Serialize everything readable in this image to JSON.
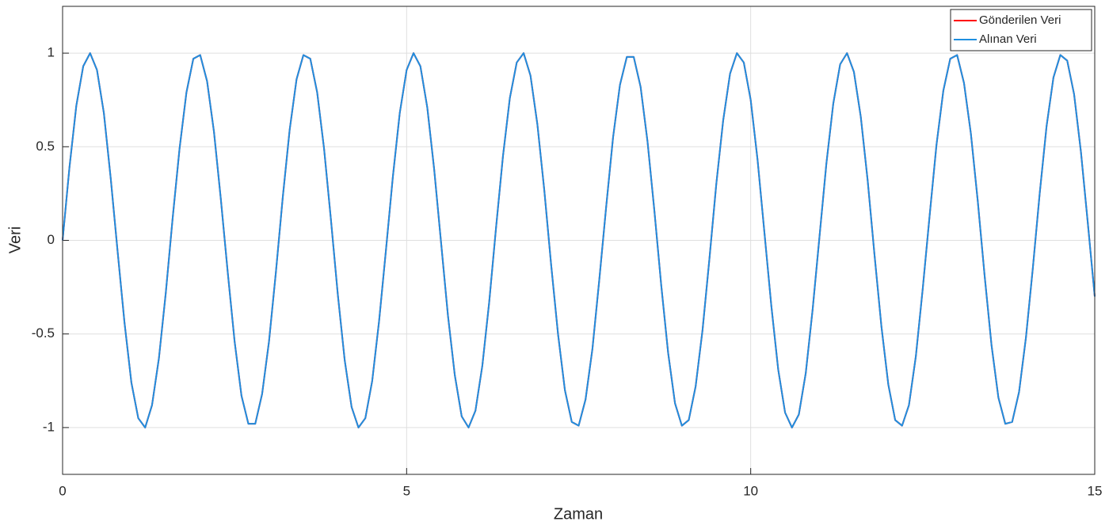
{
  "chart_data": {
    "type": "line",
    "xlabel": "Zaman",
    "ylabel": "Veri",
    "x": [
      0,
      0.1,
      0.2,
      0.3,
      0.4,
      0.5,
      0.6,
      0.7,
      0.8,
      0.9,
      1,
      1.1,
      1.2,
      1.3,
      1.4,
      1.5,
      1.6,
      1.7,
      1.8,
      1.9,
      2,
      2.1,
      2.2,
      2.3,
      2.4,
      2.5,
      2.6,
      2.7,
      2.8,
      2.9,
      3,
      3.1,
      3.2,
      3.3,
      3.4,
      3.5,
      3.6,
      3.7,
      3.8,
      3.9,
      4,
      4.1,
      4.2,
      4.3,
      4.4,
      4.5,
      4.6,
      4.7,
      4.8,
      4.9,
      5,
      5.1,
      5.2,
      5.3,
      5.4,
      5.5,
      5.6,
      5.7,
      5.8,
      5.9,
      6,
      6.1,
      6.2,
      6.3,
      6.4,
      6.5,
      6.6,
      6.7,
      6.8,
      6.9,
      7,
      7.1,
      7.2,
      7.3,
      7.4,
      7.5,
      7.6,
      7.7,
      7.8,
      7.9,
      8,
      8.1,
      8.2,
      8.3,
      8.4,
      8.5,
      8.6,
      8.7,
      8.8,
      8.9,
      9,
      9.1,
      9.2,
      9.3,
      9.4,
      9.5,
      9.6,
      9.7,
      9.8,
      9.9,
      10,
      10.1,
      10.2,
      10.3,
      10.4,
      10.5,
      10.6,
      10.7,
      10.8,
      10.9,
      11,
      11.1,
      11.2,
      11.3,
      11.4,
      11.5,
      11.6,
      11.7,
      11.8,
      11.9,
      12,
      12.1,
      12.2,
      12.3,
      12.4,
      12.5,
      12.6,
      12.7,
      12.8,
      12.9,
      13,
      13.1,
      13.2,
      13.3,
      13.4,
      13.5,
      13.6,
      13.7,
      13.8,
      13.9,
      14,
      14.1,
      14.2,
      14.3,
      14.4,
      14.5,
      14.6,
      14.7,
      14.8,
      14.9,
      15
    ],
    "series": [
      {
        "name": "Gönderilen Veri",
        "color": "#ff0000",
        "values": [
          0,
          0.39,
          0.72,
          0.93,
          1,
          0.91,
          0.68,
          0.33,
          -0.06,
          -0.44,
          -0.76,
          -0.95,
          -1,
          -0.88,
          -0.63,
          -0.28,
          0.12,
          0.49,
          0.79,
          0.97,
          0.99,
          0.85,
          0.58,
          0.22,
          -0.17,
          -0.54,
          -0.83,
          -0.98,
          -0.98,
          -0.82,
          -0.54,
          -0.17,
          0.23,
          0.59,
          0.86,
          0.99,
          0.97,
          0.79,
          0.49,
          0.11,
          -0.29,
          -0.64,
          -0.89,
          -1,
          -0.95,
          -0.75,
          -0.43,
          -0.05,
          0.34,
          0.68,
          0.91,
          1,
          0.93,
          0.71,
          0.38,
          -0.01,
          -0.4,
          -0.72,
          -0.94,
          -1,
          -0.91,
          -0.67,
          -0.33,
          0.07,
          0.45,
          0.76,
          0.95,
          1,
          0.88,
          0.62,
          0.27,
          -0.13,
          -0.5,
          -0.8,
          -0.97,
          -0.99,
          -0.85,
          -0.58,
          -0.21,
          0.18,
          0.55,
          0.83,
          0.98,
          0.98,
          0.82,
          0.53,
          0.16,
          -0.24,
          -0.6,
          -0.87,
          -0.99,
          -0.96,
          -0.78,
          -0.48,
          -0.1,
          0.3,
          0.64,
          0.89,
          1,
          0.95,
          0.75,
          0.43,
          0.04,
          -0.35,
          -0.69,
          -0.92,
          -1,
          -0.93,
          -0.71,
          -0.37,
          0.02,
          0.41,
          0.73,
          0.94,
          1,
          0.9,
          0.66,
          0.32,
          -0.08,
          -0.46,
          -0.77,
          -0.96,
          -0.99,
          -0.88,
          -0.62,
          -0.26,
          0.13,
          0.51,
          0.8,
          0.97,
          0.99,
          0.84,
          0.57,
          0.21,
          -0.19,
          -0.56,
          -0.84,
          -0.98,
          -0.97,
          -0.81,
          -0.52,
          -0.15,
          0.25,
          0.61,
          0.87,
          0.99,
          0.96,
          0.78,
          0.47,
          0.09,
          -0.3
        ]
      },
      {
        "name": "Alınan Veri",
        "color": "#1f8fe0",
        "values": [
          0,
          0.39,
          0.72,
          0.93,
          1,
          0.91,
          0.68,
          0.33,
          -0.06,
          -0.44,
          -0.76,
          -0.95,
          -1,
          -0.88,
          -0.63,
          -0.28,
          0.12,
          0.49,
          0.79,
          0.97,
          0.99,
          0.85,
          0.58,
          0.22,
          -0.17,
          -0.54,
          -0.83,
          -0.98,
          -0.98,
          -0.82,
          -0.54,
          -0.17,
          0.23,
          0.59,
          0.86,
          0.99,
          0.97,
          0.79,
          0.49,
          0.11,
          -0.29,
          -0.64,
          -0.89,
          -1,
          -0.95,
          -0.75,
          -0.43,
          -0.05,
          0.34,
          0.68,
          0.91,
          1,
          0.93,
          0.71,
          0.38,
          -0.01,
          -0.4,
          -0.72,
          -0.94,
          -1,
          -0.91,
          -0.67,
          -0.33,
          0.07,
          0.45,
          0.76,
          0.95,
          1,
          0.88,
          0.62,
          0.27,
          -0.13,
          -0.5,
          -0.8,
          -0.97,
          -0.99,
          -0.85,
          -0.58,
          -0.21,
          0.18,
          0.55,
          0.83,
          0.98,
          0.98,
          0.82,
          0.53,
          0.16,
          -0.24,
          -0.6,
          -0.87,
          -0.99,
          -0.96,
          -0.78,
          -0.48,
          -0.1,
          0.3,
          0.64,
          0.89,
          1,
          0.95,
          0.75,
          0.43,
          0.04,
          -0.35,
          -0.69,
          -0.92,
          -1,
          -0.93,
          -0.71,
          -0.37,
          0.02,
          0.41,
          0.73,
          0.94,
          1,
          0.9,
          0.66,
          0.32,
          -0.08,
          -0.46,
          -0.77,
          -0.96,
          -0.99,
          -0.88,
          -0.62,
          -0.26,
          0.13,
          0.51,
          0.8,
          0.97,
          0.99,
          0.84,
          0.57,
          0.21,
          -0.19,
          -0.56,
          -0.84,
          -0.98,
          -0.97,
          -0.81,
          -0.52,
          -0.15,
          0.25,
          0.61,
          0.87,
          0.99,
          0.96,
          0.78,
          0.47,
          0.09,
          -0.3
        ]
      }
    ],
    "xlim": [
      0,
      15
    ],
    "xticks": [
      0,
      5,
      10,
      15
    ],
    "ylim": [
      -1.25,
      1.25
    ],
    "yticks": [
      -1,
      -0.5,
      0,
      0.5,
      1
    ],
    "grid": true,
    "legend": "upper right"
  }
}
